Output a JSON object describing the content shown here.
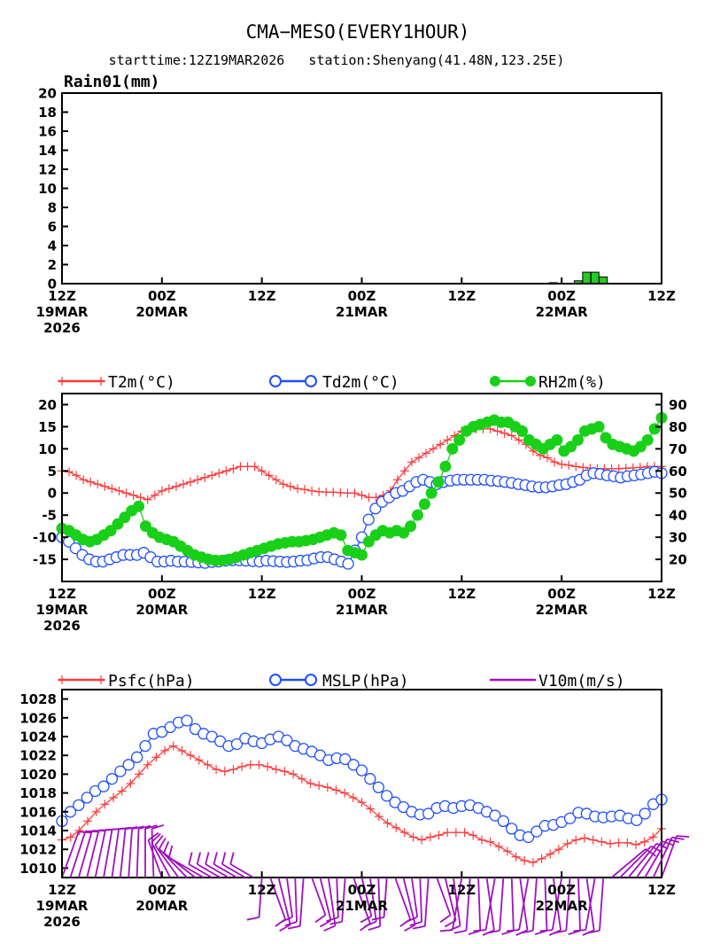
{
  "header": {
    "title": "CMA−MESO(EVERY1HOUR)",
    "subtitle": "starttime:12Z19MAR2026   station:Shenyang(41.48N,123.25E)"
  },
  "colors": {
    "t2m": "#ff3b3b",
    "td2m": "#1f4fff",
    "rh2m": "#19d019",
    "psfc": "#ff3b3b",
    "mslp": "#1f4fff",
    "v10m": "#a010c0",
    "rain": "#22cc22"
  },
  "x_axis": {
    "range_hours": [
      0,
      72
    ],
    "ticks": [
      {
        "hour": 0,
        "lines": [
          "12Z",
          "19MAR",
          "2026"
        ]
      },
      {
        "hour": 12,
        "lines": [
          "00Z",
          "20MAR"
        ]
      },
      {
        "hour": 24,
        "lines": [
          "12Z"
        ]
      },
      {
        "hour": 36,
        "lines": [
          "00Z",
          "21MAR"
        ]
      },
      {
        "hour": 48,
        "lines": [
          "12Z"
        ]
      },
      {
        "hour": 60,
        "lines": [
          "00Z",
          "22MAR"
        ]
      },
      {
        "hour": 72,
        "lines": [
          "12Z"
        ]
      }
    ]
  },
  "chart_data": [
    {
      "type": "bar",
      "label": "Rain01(mm)",
      "ylim": [
        0,
        20
      ],
      "yticks": [
        0,
        2,
        4,
        6,
        8,
        10,
        12,
        14,
        16,
        18,
        20
      ],
      "hours": [
        59,
        62,
        63,
        64,
        65
      ],
      "values": [
        0.1,
        0.3,
        1.2,
        1.2,
        0.7
      ]
    },
    {
      "type": "line",
      "ylim_left": [
        -20,
        22.5
      ],
      "yticks_left": [
        -15,
        -10,
        -5,
        0,
        5,
        10,
        15,
        20
      ],
      "ylim_right": [
        10,
        95
      ],
      "yticks_right": [
        20,
        30,
        40,
        50,
        60,
        70,
        80,
        90
      ],
      "legend": {
        "t2m": "T2m(°C)",
        "td2m": "Td2m(°C)",
        "rh2m": "RH2m(%)"
      },
      "series": [
        {
          "name": "T2m",
          "axis": "left",
          "values": [
            5,
            4.8,
            4,
            3,
            2.5,
            2,
            1.5,
            1,
            0.5,
            0,
            -0.5,
            -1,
            -1.5,
            -0.5,
            0.5,
            1,
            1.5,
            2,
            2.5,
            3,
            3.5,
            4,
            4.5,
            5,
            5.5,
            6,
            6,
            6,
            5,
            4,
            3,
            2,
            1.5,
            1,
            0.8,
            0.5,
            0.3,
            0.2,
            0.2,
            0.1,
            0,
            0,
            -0.5,
            -1,
            -1,
            -0.5,
            0.5,
            3,
            5,
            7,
            8,
            9,
            10,
            11,
            12,
            13,
            14,
            14.5,
            14.5,
            14.5,
            14.5,
            14,
            13.5,
            13,
            12,
            11,
            9.5,
            8.5,
            8,
            7,
            6.5,
            6.3,
            6,
            5.8,
            5.6,
            5.5,
            5.5,
            5.5,
            5.5,
            5.6,
            5.7,
            5.8,
            6,
            6,
            6
          ]
        },
        {
          "name": "Td2m",
          "axis": "left",
          "values": [
            -10,
            -11,
            -12.5,
            -14,
            -15,
            -15.5,
            -15.5,
            -15,
            -14.5,
            -14,
            -14,
            -14,
            -13.5,
            -14.5,
            -15.5,
            -15.5,
            -15.3,
            -15.5,
            -15.5,
            -15.6,
            -15.7,
            -15.8,
            -15.6,
            -15.5,
            -15.3,
            -15.2,
            -15.2,
            -15.3,
            -15.4,
            -15.5,
            -15.3,
            -15.4,
            -15.5,
            -15.6,
            -15.5,
            -15.3,
            -15.2,
            -14.8,
            -14.5,
            -14.5,
            -15,
            -15.5,
            -16,
            -13,
            -10,
            -6,
            -3.5,
            -2,
            -1,
            0,
            0.5,
            1.5,
            2.5,
            3,
            2.5,
            2,
            2.5,
            2.8,
            3,
            3,
            3,
            3,
            3,
            2.8,
            2.7,
            2.5,
            2.3,
            2,
            1.8,
            1.5,
            1.3,
            1.3,
            1.5,
            1.8,
            2,
            2.5,
            3,
            4,
            4.5,
            4.3,
            4,
            3.8,
            3.5,
            3.8,
            4,
            4.2,
            4.5,
            4.8,
            4.5
          ]
        },
        {
          "name": "RH2m",
          "axis": "right",
          "values": [
            34,
            33,
            31,
            29,
            28,
            29,
            31,
            33,
            36,
            39,
            42,
            44,
            35,
            32,
            30,
            29,
            28,
            26,
            24,
            22,
            21,
            20,
            19.5,
            19.5,
            20,
            21,
            22,
            23,
            24,
            25,
            26,
            27,
            27.5,
            28,
            28,
            28.5,
            29,
            30,
            31,
            32,
            31,
            24,
            23,
            22,
            28,
            31,
            33,
            32,
            33,
            32,
            35,
            40,
            45,
            50,
            55,
            62,
            70,
            74,
            78,
            80,
            81,
            82,
            83,
            82,
            82,
            80,
            78,
            74,
            72,
            70,
            72,
            74,
            69,
            71,
            74,
            78,
            79,
            80,
            75,
            72,
            71,
            70,
            69,
            71,
            74,
            79,
            84
          ]
        }
      ]
    },
    {
      "type": "line",
      "ylim": [
        1009,
        1029
      ],
      "yticks": [
        1010,
        1012,
        1014,
        1016,
        1018,
        1020,
        1022,
        1024,
        1026,
        1028
      ],
      "legend": {
        "psfc": "Psfc(hPa)",
        "mslp": "MSLP(hPa)",
        "v10m": "V10m(m/s)"
      },
      "series": [
        {
          "name": "Psfc",
          "values": [
            1013,
            1013.3,
            1014,
            1015,
            1016,
            1016.8,
            1017.5,
            1018.2,
            1019,
            1020,
            1021,
            1021.8,
            1022.5,
            1023,
            1022.5,
            1022,
            1021.5,
            1021,
            1020.5,
            1020.3,
            1020.5,
            1020.8,
            1021,
            1021,
            1020.8,
            1020.5,
            1020.3,
            1020,
            1019.5,
            1019,
            1018.8,
            1018.6,
            1018.3,
            1018,
            1017.5,
            1017,
            1016.3,
            1015.5,
            1014.8,
            1014.3,
            1013.8,
            1013.3,
            1013,
            1013.3,
            1013.5,
            1013.8,
            1013.8,
            1013.8,
            1013.5,
            1013,
            1012.8,
            1012.3,
            1011.8,
            1011.2,
            1010.8,
            1010.6,
            1011,
            1011.5,
            1012,
            1012.6,
            1013,
            1013.2,
            1013,
            1012.8,
            1012.6,
            1012.7,
            1012.7,
            1012.5,
            1012.8,
            1013.3,
            1014.2
          ]
        },
        {
          "name": "MSLP",
          "values": [
            1015,
            1016,
            1016.7,
            1017.5,
            1018.2,
            1018.7,
            1019.5,
            1020.3,
            1021,
            1021.8,
            1023,
            1024.3,
            1024.5,
            1025,
            1025.5,
            1025.7,
            1024.8,
            1024.3,
            1024,
            1023.5,
            1023,
            1023.2,
            1023.8,
            1023.5,
            1023.3,
            1023.7,
            1024,
            1023.6,
            1023,
            1022.7,
            1022.4,
            1022,
            1021.5,
            1021.7,
            1021.6,
            1021,
            1020.4,
            1019.5,
            1018.6,
            1017.7,
            1017,
            1016.5,
            1016,
            1015.7,
            1015.8,
            1016.4,
            1016.6,
            1016.4,
            1016.6,
            1016.7,
            1016.4,
            1016,
            1015.6,
            1015,
            1014.2,
            1013.5,
            1013.3,
            1013.9,
            1014.5,
            1014.6,
            1014.9,
            1015.3,
            1015.9,
            1015.8,
            1015.5,
            1015.4,
            1015.5,
            1015.6,
            1015.3,
            1015.1,
            1015.8,
            1016.8,
            1017.3
          ]
        }
      ]
    }
  ]
}
